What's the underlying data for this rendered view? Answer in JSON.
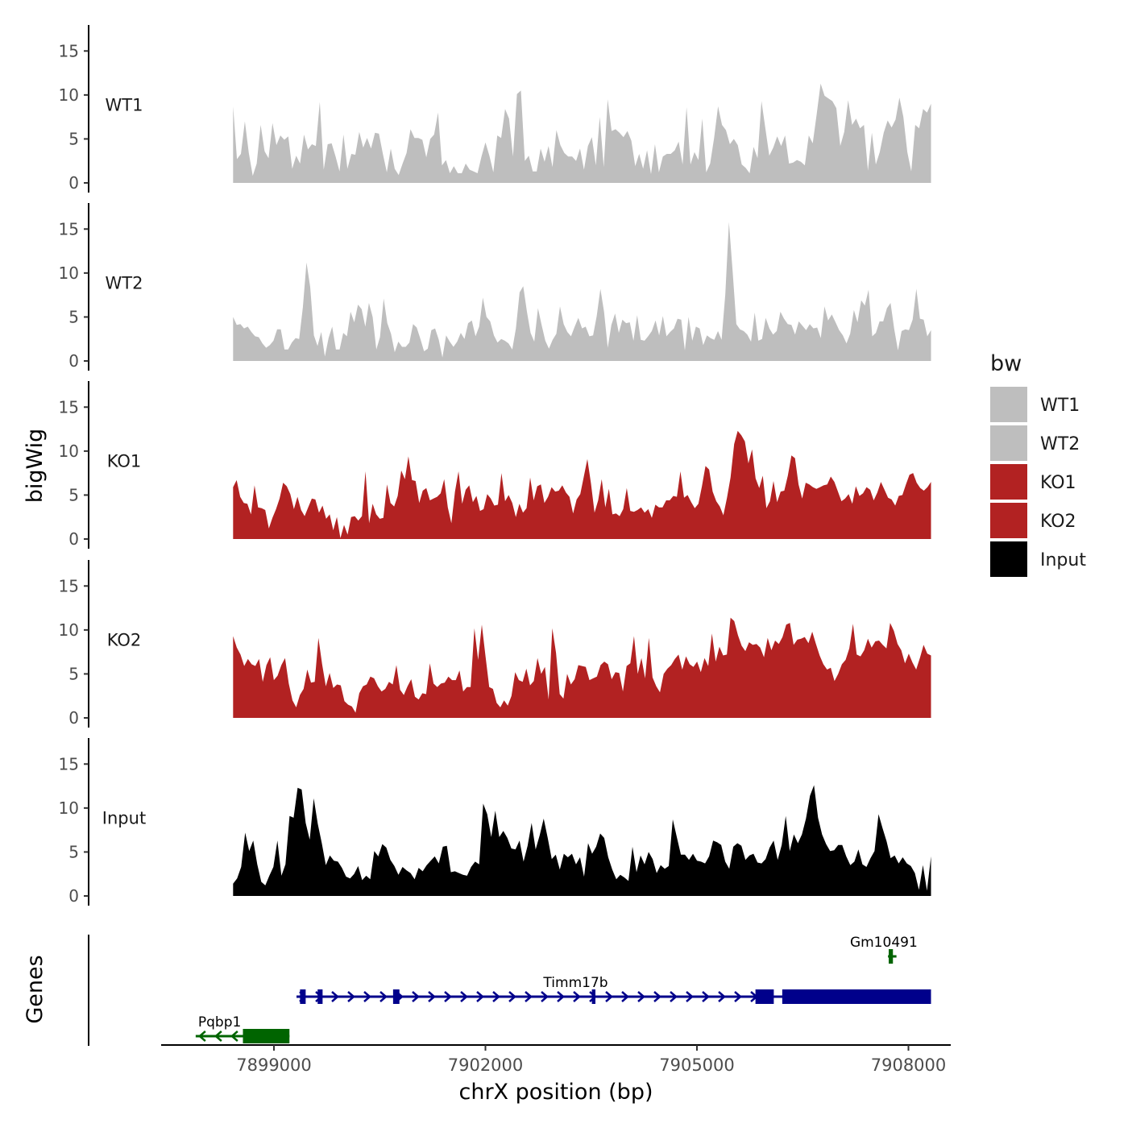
{
  "chart_data": {
    "type": "area",
    "ylabel": "bigWig",
    "genes_label": "Genes",
    "xlabel": "chrX position (bp)",
    "xlim": [
      7897400,
      7908600
    ],
    "ylim": [
      0,
      17.5
    ],
    "y_ticks": [
      "0",
      "5",
      "10",
      "15"
    ],
    "x_ticks": [
      {
        "value": 7899000,
        "label": "7899000"
      },
      {
        "value": 7902000,
        "label": "7902000"
      },
      {
        "value": 7905000,
        "label": "7905000"
      },
      {
        "value": 7908000,
        "label": "7908000"
      }
    ],
    "x_range": [
      7898420,
      7908320
    ],
    "colors": {
      "WT": "#bebebe",
      "KO": "#b22222",
      "Input": "#000000",
      "gene_plus": "#00008b",
      "gene_minus": "#006400"
    },
    "legend": {
      "title": "bw",
      "entries": [
        {
          "label": "WT1",
          "color": "#bebebe"
        },
        {
          "label": "WT2",
          "color": "#bebebe"
        },
        {
          "label": "KO1",
          "color": "#b22222"
        },
        {
          "label": "KO2",
          "color": "#b22222"
        },
        {
          "label": "Input",
          "color": "#000000"
        }
      ]
    },
    "tracks": [
      {
        "name": "WT1",
        "color": "#bebebe",
        "values": [
          8.7,
          2.7,
          3.3,
          7.0,
          3.4,
          0.8,
          2.2,
          6.6,
          3.6,
          2.8,
          6.8,
          4.3,
          5.4,
          4.9,
          5.3,
          1.6,
          3.1,
          2.2,
          5.5,
          3.8,
          4.4,
          4.2,
          9.2,
          1.5,
          4.4,
          4.5,
          3.0,
          1.3,
          5.5,
          1.6,
          3.3,
          3.2,
          5.8,
          4.0,
          5.1,
          3.9,
          5.7,
          5.6,
          3.3,
          1.2,
          3.9,
          1.6,
          0.9,
          2.2,
          3.4,
          6.1,
          5.1,
          5.1,
          4.9,
          2.9,
          5.0,
          5.5,
          8.0,
          2.0,
          2.6,
          1.1,
          1.9,
          1.1,
          1.1,
          2.2,
          1.5,
          1.3,
          1.1,
          3.0,
          4.6,
          3.1,
          1.2,
          5.4,
          5.1,
          8.4,
          7.3,
          3.0,
          10.1,
          10.5,
          2.5,
          3.1,
          1.3,
          1.3,
          3.9,
          2.4,
          4.2,
          1.8,
          6.0,
          4.3,
          3.4,
          3.0,
          3.0,
          2.5,
          3.9,
          1.5,
          4.2,
          5.2,
          2.0,
          7.5,
          1.8,
          9.5,
          5.9,
          6.1,
          5.7,
          5.2,
          5.9,
          4.8,
          1.9,
          3.3,
          1.6,
          3.7,
          1.0,
          4.4,
          1.2,
          3.0,
          3.3,
          3.3,
          3.7,
          4.7,
          2.1,
          8.6,
          2.1,
          3.5,
          2.6,
          7.3,
          1.2,
          2.2,
          5.1,
          8.7,
          6.6,
          6.0,
          4.4,
          5.0,
          4.3,
          2.1,
          1.7,
          1.1,
          4.1,
          2.8,
          9.3,
          6.2,
          3.1,
          4.0,
          5.3,
          4.2,
          5.4,
          2.2,
          2.3,
          2.6,
          2.4,
          2.0,
          5.4,
          4.5,
          7.8,
          11.3,
          9.9,
          9.6,
          9.3,
          8.5,
          4.2,
          5.8,
          9.4,
          6.6,
          7.3,
          6.2,
          6.6,
          1.4,
          5.7,
          2.1,
          3.5,
          5.7,
          7.1,
          6.3,
          7.2,
          9.7,
          7.5,
          3.5,
          1.3,
          6.6,
          6.2,
          8.4,
          8.0,
          9.0
        ]
      },
      {
        "name": "WT2",
        "color": "#bebebe",
        "values": [
          5.0,
          4.1,
          4.2,
          3.7,
          3.9,
          3.3,
          2.8,
          2.7,
          2.0,
          1.5,
          1.8,
          2.3,
          3.6,
          3.6,
          1.3,
          1.3,
          2.1,
          2.6,
          2.5,
          6.1,
          11.2,
          8.4,
          2.9,
          1.7,
          3.3,
          0.5,
          2.6,
          3.9,
          1.3,
          1.3,
          3.2,
          2.8,
          5.6,
          4.4,
          6.4,
          5.9,
          3.9,
          6.6,
          5.0,
          1.3,
          2.7,
          7.1,
          4.3,
          3.1,
          1.0,
          2.2,
          1.6,
          1.6,
          2.1,
          4.2,
          3.8,
          2.5,
          1.1,
          1.4,
          3.5,
          3.7,
          2.4,
          0.4,
          2.9,
          2.2,
          1.6,
          2.2,
          3.2,
          2.5,
          4.3,
          4.6,
          2.8,
          3.9,
          7.2,
          5.0,
          4.5,
          2.9,
          2.1,
          2.5,
          2.3,
          2.0,
          1.3,
          3.7,
          7.8,
          8.5,
          5.6,
          3.2,
          2.2,
          6.0,
          4.1,
          2.3,
          1.4,
          2.4,
          3.1,
          6.2,
          4.2,
          3.3,
          2.8,
          3.9,
          4.9,
          3.7,
          3.9,
          2.8,
          2.9,
          5.1,
          8.2,
          5.6,
          1.5,
          4.1,
          5.4,
          3.2,
          4.7,
          4.3,
          4.4,
          2.3,
          5.2,
          2.4,
          2.3,
          2.8,
          3.4,
          4.6,
          2.9,
          5.1,
          2.8,
          3.3,
          3.7,
          4.8,
          4.7,
          1.2,
          5.0,
          2.3,
          3.9,
          3.7,
          1.8,
          2.9,
          2.6,
          2.4,
          3.4,
          2.4,
          7.6,
          15.8,
          10.2,
          4.2,
          3.6,
          3.4,
          3.0,
          2.2,
          5.5,
          2.3,
          2.5,
          4.9,
          3.7,
          3.0,
          3.4,
          5.6,
          4.8,
          4.2,
          4.1,
          3.0,
          4.5,
          4.0,
          3.5,
          4.2,
          3.7,
          3.8,
          2.6,
          6.2,
          4.6,
          5.3,
          4.4,
          3.5,
          2.9,
          2.0,
          3.1,
          5.8,
          4.4,
          6.9,
          6.3,
          8.1,
          2.8,
          3.2,
          4.5,
          4.5,
          6.0,
          6.6,
          3.6,
          1.2,
          3.4,
          3.6,
          3.5,
          4.7,
          8.2,
          4.8,
          4.7,
          2.8,
          3.5
        ]
      },
      {
        "name": "KO1",
        "color": "#b22222",
        "values": [
          5.9,
          6.7,
          4.8,
          4.1,
          4.0,
          2.8,
          6.1,
          3.6,
          3.5,
          3.3,
          1.2,
          2.4,
          3.4,
          4.6,
          6.4,
          6.0,
          5.1,
          3.4,
          4.8,
          3.3,
          2.6,
          3.6,
          4.6,
          4.5,
          3.0,
          3.8,
          2.3,
          2.8,
          1.0,
          2.5,
          0.1,
          1.6,
          0.5,
          2.5,
          2.6,
          2.1,
          2.6,
          7.7,
          1.8,
          4.0,
          2.8,
          2.3,
          2.4,
          6.2,
          4.1,
          3.7,
          4.9,
          7.8,
          6.8,
          9.4,
          6.7,
          6.6,
          4.1,
          5.5,
          5.8,
          4.4,
          4.6,
          4.8,
          5.2,
          6.8,
          3.6,
          1.8,
          5.4,
          7.7,
          4.0,
          5.6,
          6.1,
          4.2,
          4.9,
          3.2,
          3.4,
          5.1,
          4.6,
          3.8,
          3.9,
          7.5,
          4.3,
          5.0,
          4.1,
          2.5,
          4.0,
          3.0,
          3.5,
          7.0,
          4.4,
          6.0,
          6.2,
          4.1,
          4.8,
          5.9,
          5.4,
          5.5,
          6.1,
          5.3,
          4.8,
          2.9,
          4.5,
          5.1,
          7.1,
          9.1,
          6.3,
          3.0,
          4.4,
          6.8,
          3.6,
          5.7,
          2.8,
          2.9,
          2.6,
          3.4,
          5.8,
          3.2,
          3.1,
          3.3,
          3.6,
          3.0,
          3.4,
          2.4,
          3.9,
          3.6,
          3.6,
          4.4,
          4.4,
          4.9,
          4.8,
          7.7,
          4.7,
          5.0,
          4.2,
          3.5,
          4.0,
          6.0,
          8.3,
          7.9,
          5.4,
          4.3,
          3.7,
          2.7,
          4.7,
          7.0,
          10.8,
          12.3,
          11.8,
          11.1,
          8.6,
          10.2,
          6.9,
          5.8,
          7.2,
          3.5,
          4.3,
          6.6,
          4.2,
          5.4,
          5.5,
          7.2,
          9.5,
          9.2,
          6.2,
          4.6,
          6.4,
          6.2,
          5.9,
          5.7,
          5.9,
          6.1,
          6.2,
          7.1,
          6.5,
          5.4,
          4.3,
          4.6,
          5.1,
          4.0,
          6.0,
          4.9,
          5.2,
          5.9,
          5.6,
          4.4,
          5.3,
          6.5,
          5.6,
          4.7,
          4.5,
          3.8,
          4.9,
          5.0,
          6.2,
          7.3,
          7.5,
          6.4,
          5.8,
          5.5,
          5.9,
          6.5
        ]
      },
      {
        "name": "KO2",
        "color": "#b22222",
        "values": [
          9.3,
          8.0,
          7.2,
          5.9,
          6.7,
          6.1,
          5.9,
          6.7,
          4.1,
          6.0,
          6.9,
          4.3,
          4.8,
          6.0,
          6.8,
          3.9,
          2.0,
          1.2,
          2.6,
          3.3,
          5.5,
          4.0,
          4.1,
          9.1,
          6.1,
          3.6,
          5.1,
          3.4,
          3.8,
          3.7,
          1.9,
          1.5,
          1.3,
          0.6,
          2.8,
          3.6,
          3.8,
          4.7,
          4.5,
          3.6,
          3.0,
          3.3,
          4.1,
          3.8,
          6.0,
          3.2,
          2.6,
          3.6,
          4.4,
          2.4,
          2.1,
          2.8,
          2.7,
          6.2,
          3.9,
          3.5,
          3.9,
          4.0,
          4.7,
          4.3,
          4.3,
          5.4,
          3.0,
          3.5,
          3.5,
          10.2,
          6.6,
          10.6,
          7.0,
          3.5,
          3.3,
          1.7,
          1.2,
          2.0,
          1.4,
          2.5,
          5.2,
          4.3,
          4.1,
          5.6,
          3.7,
          4.2,
          6.8,
          5.0,
          5.8,
          2.1,
          10.2,
          7.4,
          2.7,
          2.2,
          5.0,
          3.8,
          4.4,
          6.0,
          5.9,
          5.8,
          4.3,
          4.5,
          4.7,
          6.0,
          6.4,
          6.1,
          4.4,
          5.2,
          5.1,
          3.0,
          5.9,
          6.2,
          9.3,
          5.0,
          6.8,
          4.5,
          9.1,
          4.6,
          3.6,
          2.9,
          5.0,
          5.6,
          6.0,
          6.7,
          7.2,
          5.5,
          7.0,
          6.1,
          5.8,
          6.4,
          5.2,
          6.8,
          5.9,
          9.6,
          6.4,
          8.1,
          7.1,
          7.2,
          11.4,
          11.0,
          9.4,
          8.2,
          7.6,
          8.6,
          8.3,
          8.4,
          8.0,
          6.9,
          9.1,
          7.7,
          8.8,
          8.4,
          9.2,
          10.6,
          10.8,
          8.3,
          8.9,
          9.0,
          9.2,
          8.5,
          9.8,
          8.4,
          7.1,
          6.1,
          5.5,
          5.7,
          4.2,
          5.0,
          6.1,
          6.6,
          7.9,
          10.7,
          7.2,
          7.0,
          7.7,
          9.0,
          8.0,
          8.7,
          8.8,
          8.3,
          7.9,
          10.8,
          9.9,
          8.4,
          7.7,
          6.2,
          7.3,
          6.3,
          5.5,
          6.8,
          8.3,
          7.3,
          7.1
        ]
      },
      {
        "name": "Input",
        "color": "#000000",
        "values": [
          1.4,
          2.0,
          3.3,
          7.2,
          5.1,
          6.3,
          3.6,
          1.6,
          1.2,
          2.3,
          3.3,
          6.3,
          2.3,
          3.6,
          9.1,
          8.9,
          12.3,
          12.1,
          8.3,
          6.4,
          11.1,
          8.2,
          6.0,
          3.5,
          4.6,
          4.0,
          3.9,
          3.2,
          2.2,
          2.0,
          2.5,
          3.4,
          1.8,
          2.3,
          1.9,
          5.1,
          4.5,
          5.9,
          5.5,
          4.1,
          3.4,
          2.4,
          3.3,
          2.9,
          2.6,
          1.9,
          3.2,
          2.8,
          3.5,
          4.0,
          4.5,
          3.7,
          5.6,
          5.7,
          2.7,
          2.8,
          2.6,
          2.4,
          2.3,
          3.3,
          3.9,
          3.6,
          10.5,
          9.3,
          6.7,
          9.7,
          6.7,
          7.4,
          6.6,
          5.4,
          5.3,
          6.3,
          3.9,
          5.7,
          8.3,
          5.3,
          6.9,
          8.8,
          6.6,
          4.2,
          4.7,
          3.0,
          4.8,
          4.4,
          4.8,
          3.6,
          4.4,
          2.2,
          6.0,
          4.8,
          5.6,
          7.1,
          6.6,
          4.4,
          3.0,
          1.9,
          2.4,
          2.1,
          1.7,
          5.6,
          2.7,
          4.6,
          3.6,
          5.0,
          4.2,
          2.6,
          3.5,
          3.1,
          3.4,
          8.7,
          6.7,
          4.7,
          4.7,
          4.1,
          4.8,
          4.0,
          3.9,
          3.7,
          4.5,
          6.3,
          6.1,
          5.8,
          3.9,
          3.1,
          5.6,
          6.0,
          5.7,
          4.1,
          4.6,
          4.8,
          3.8,
          3.7,
          4.2,
          5.5,
          6.3,
          4.1,
          5.8,
          9.1,
          5.1,
          7.0,
          6.0,
          7.0,
          8.8,
          11.4,
          12.6,
          8.9,
          7.0,
          5.9,
          5.1,
          5.2,
          5.8,
          5.8,
          4.5,
          3.5,
          3.9,
          5.3,
          3.6,
          3.3,
          4.3,
          5.1,
          9.3,
          7.7,
          6.2,
          4.3,
          4.6,
          3.7,
          4.4,
          3.7,
          3.4,
          2.6,
          0.7,
          3.5,
          0.6,
          4.5
        ]
      }
    ],
    "genes": [
      {
        "name": "Timm17b",
        "strand": "+",
        "start": 7899320,
        "end": 7908320,
        "row": 2,
        "exons": [
          [
            7899370,
            7899450
          ],
          [
            7899620,
            7899690
          ],
          [
            7900690,
            7900780
          ],
          [
            7903510,
            7903560
          ],
          [
            7905830,
            7906090
          ],
          [
            7906210,
            7908320
          ]
        ]
      },
      {
        "name": "Gm10491",
        "strand": "-",
        "start": 7907710,
        "end": 7907830,
        "row": 1,
        "exons": [
          [
            7907720,
            7907780
          ]
        ]
      },
      {
        "name": "Pqbp1",
        "strand": "-",
        "start": 7897890,
        "end": 7899220,
        "row": 3,
        "exons": [
          [
            7898560,
            7899220
          ]
        ]
      }
    ]
  }
}
